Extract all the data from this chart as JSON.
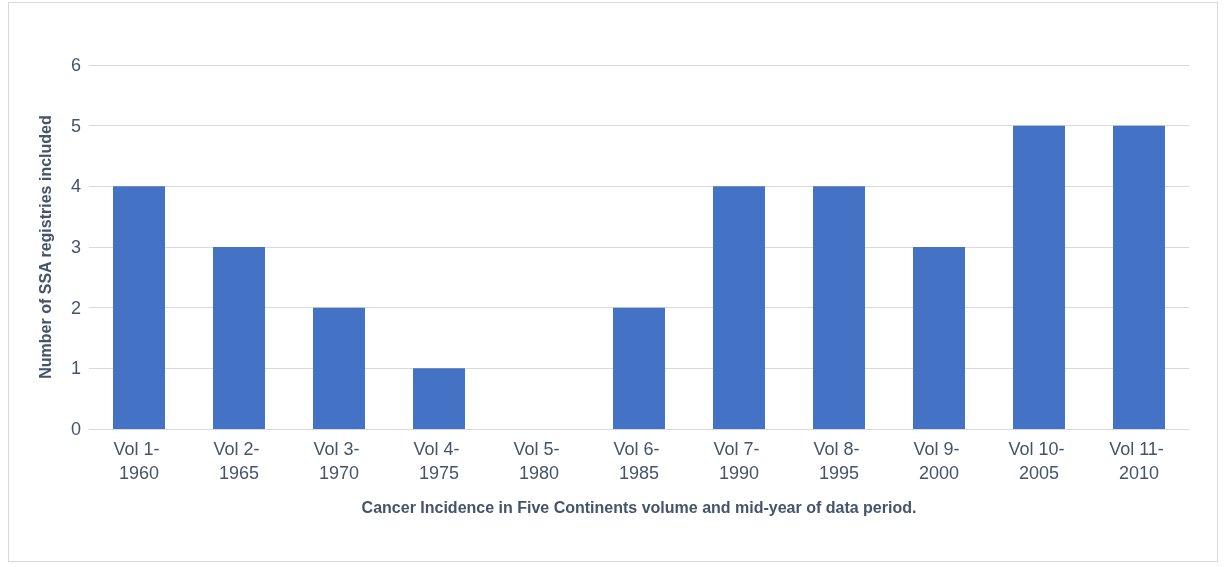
{
  "chart_data": {
    "type": "bar",
    "xlabel": "Cancer Incidence in Five Continents volume and mid-year of data period.",
    "ylabel": "Number of SSA registries included",
    "categories": [
      "Vol 1- 1960",
      "Vol 2- 1965",
      "Vol 3- 1970",
      "Vol 4- 1975",
      "Vol 5- 1980",
      "Vol 6- 1985",
      "Vol 7- 1990",
      "Vol 8- 1995",
      "Vol 9- 2000",
      "Vol 10- 2005",
      "Vol 11- 2010"
    ],
    "values": [
      4,
      3,
      2,
      1,
      0,
      2,
      4,
      4,
      3,
      5,
      5
    ],
    "color": "#4472c4",
    "ylim": [
      0,
      6
    ],
    "yticks": [
      0,
      1,
      2,
      3,
      4,
      5,
      6
    ],
    "grid": "y"
  }
}
